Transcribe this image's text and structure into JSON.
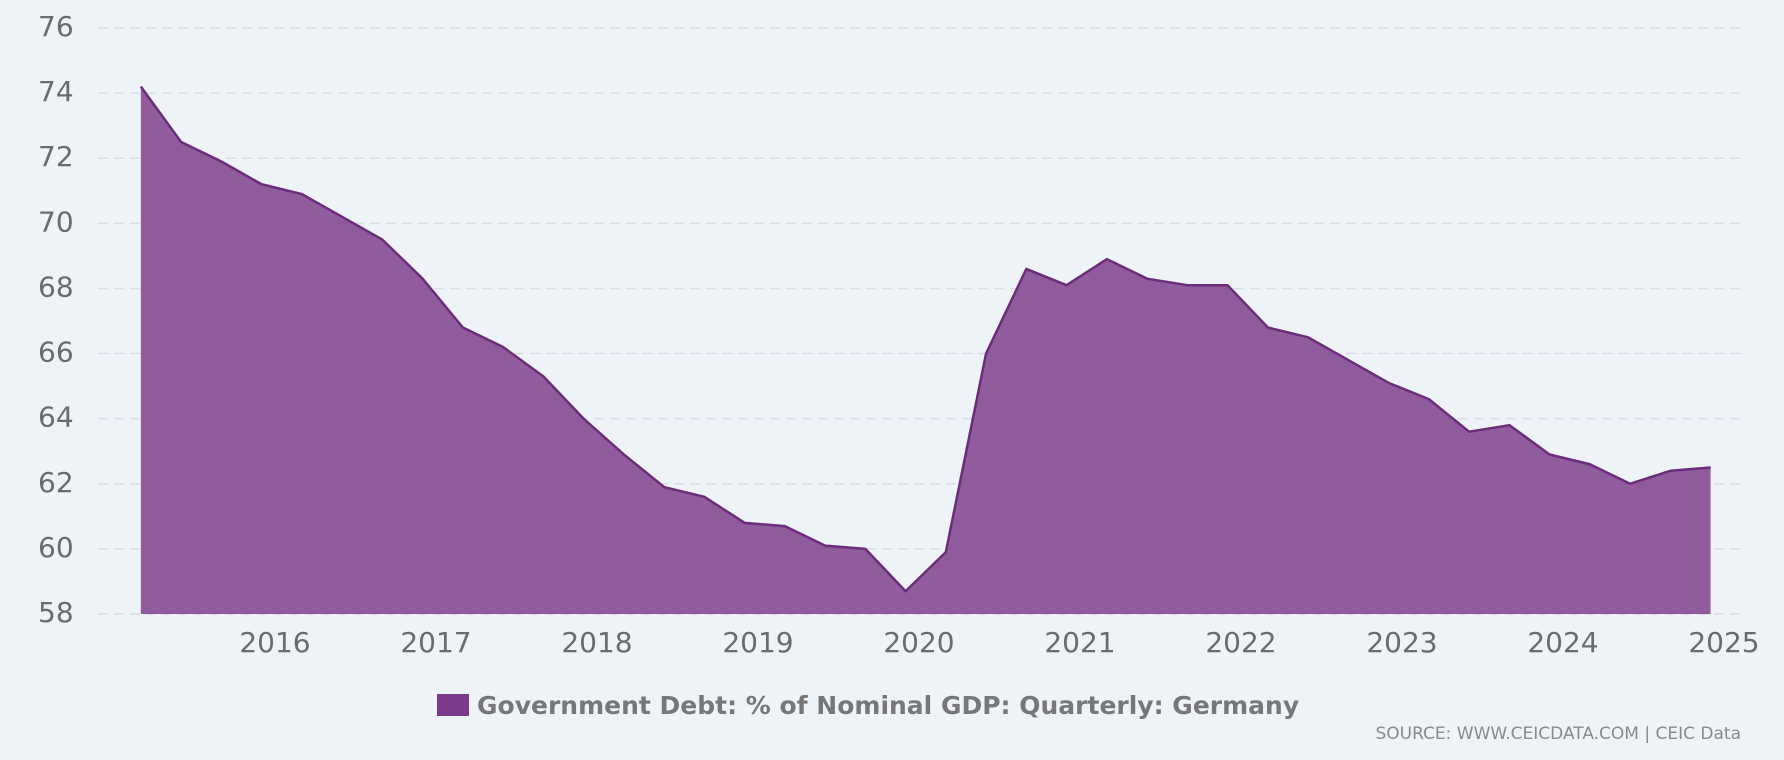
{
  "chart_data": {
    "type": "area",
    "title": "",
    "xlabel": "",
    "ylabel": "",
    "ylim": [
      58,
      76
    ],
    "xlim": [
      2015.0,
      2025.0
    ],
    "yticks": [
      58,
      60,
      62,
      64,
      66,
      68,
      70,
      72,
      74,
      76
    ],
    "xticks": [
      "2016",
      "2017",
      "2018",
      "2019",
      "2020",
      "2021",
      "2022",
      "2023",
      "2024",
      "2025"
    ],
    "grid": true,
    "legend_position": "bottom",
    "series": [
      {
        "name": "Government Debt: % of Nominal GDP: Quarterly: Germany",
        "color": "#7b3a8a",
        "x": [
          "2015-03",
          "2015-06",
          "2015-09",
          "2015-12",
          "2016-03",
          "2016-06",
          "2016-09",
          "2016-12",
          "2017-03",
          "2017-06",
          "2017-09",
          "2017-12",
          "2018-03",
          "2018-06",
          "2018-09",
          "2018-12",
          "2019-03",
          "2019-06",
          "2019-09",
          "2019-12",
          "2020-03",
          "2020-06",
          "2020-09",
          "2020-12",
          "2021-03",
          "2021-06",
          "2021-09",
          "2021-12",
          "2022-03",
          "2022-06",
          "2022-09",
          "2022-12",
          "2023-03",
          "2023-06",
          "2023-09",
          "2023-12",
          "2024-03",
          "2024-06",
          "2024-09",
          "2024-12"
        ],
        "values": [
          74.2,
          72.5,
          71.9,
          71.2,
          70.9,
          70.2,
          69.5,
          68.3,
          66.8,
          66.2,
          65.3,
          64.0,
          62.9,
          61.9,
          61.6,
          60.8,
          60.7,
          60.1,
          60.0,
          58.7,
          59.9,
          66.0,
          68.6,
          68.1,
          68.9,
          68.3,
          68.1,
          68.1,
          66.8,
          66.5,
          65.8,
          65.1,
          64.6,
          63.6,
          63.8,
          62.9,
          62.6,
          62.0,
          62.4,
          62.5
        ]
      }
    ],
    "source": "SOURCE: WWW.CEICDATA.COM | CEIC Data"
  }
}
